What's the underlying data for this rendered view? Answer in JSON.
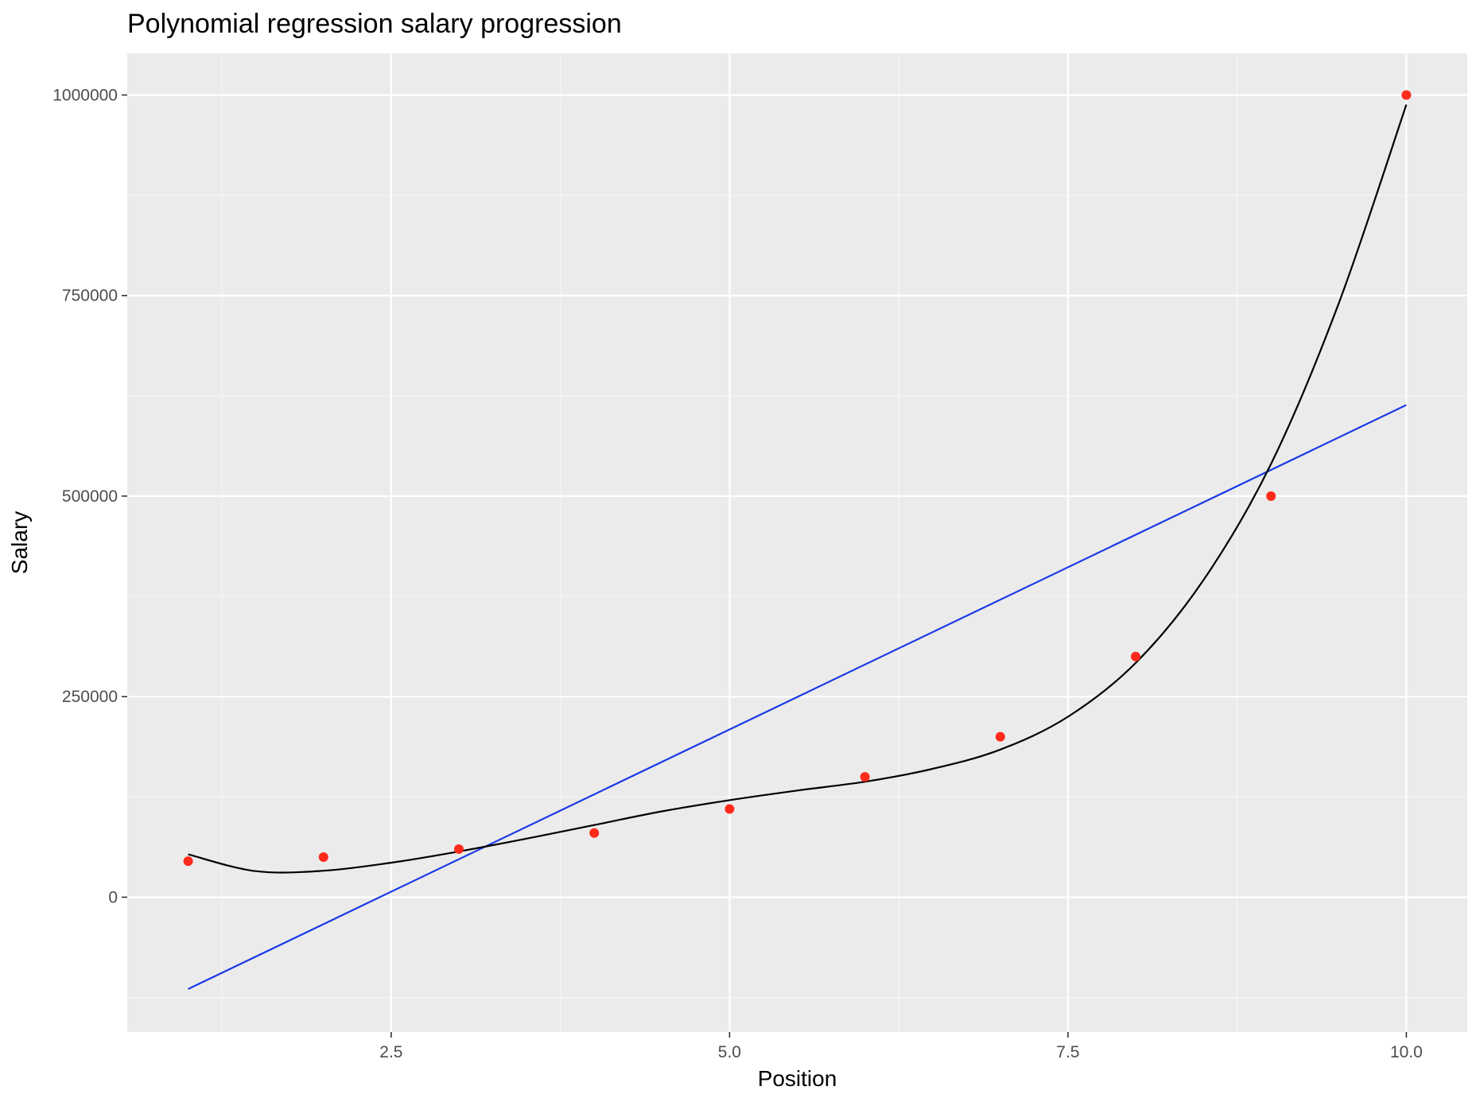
{
  "chart_data": {
    "type": "scatter",
    "title": "Polynomial regression salary progression",
    "xlabel": "Position",
    "ylabel": "Salary",
    "xlim": [
      0.55,
      10.45
    ],
    "ylim": [
      -168000,
      1052000
    ],
    "x_ticks": [
      2.5,
      5.0,
      7.5,
      10.0
    ],
    "x_tick_labels": [
      "2.5",
      "5.0",
      "7.5",
      "10.0"
    ],
    "y_ticks": [
      0,
      250000,
      500000,
      750000,
      1000000
    ],
    "y_tick_labels": [
      "0",
      "250000",
      "500000",
      "750000",
      "1000000"
    ],
    "grid": true,
    "points": {
      "x": [
        1,
        2,
        3,
        4,
        5,
        6,
        7,
        8,
        9,
        10
      ],
      "y": [
        45000,
        50000,
        60000,
        80000,
        110000,
        150000,
        200000,
        300000,
        500000,
        1000000
      ],
      "color": "#ff2a1a"
    },
    "series": [
      {
        "kind": "linear-fit",
        "color": "#1a3ae6",
        "x": [
          1,
          10
        ],
        "y": [
          -114454,
          613545
        ]
      },
      {
        "kind": "polynomial-fit",
        "color": "#000000",
        "x": [
          1,
          1.5,
          2,
          2.5,
          3,
          3.5,
          4,
          4.5,
          5,
          5.5,
          6,
          6.5,
          7,
          7.5,
          8,
          8.5,
          9,
          9.5,
          10
        ],
        "y": [
          53357,
          32500,
          33000,
          43000,
          57000,
          73000,
          90000,
          107000,
          121000,
          133000,
          144000,
          160000,
          184000,
          225000,
          292000,
          395000,
          540000,
          740000,
          988000
        ]
      }
    ],
    "colors": {
      "panel": "#ebebeb",
      "grid_major": "#ffffff",
      "grid_minor": "#f5f5f5",
      "tick": "#333333"
    }
  }
}
